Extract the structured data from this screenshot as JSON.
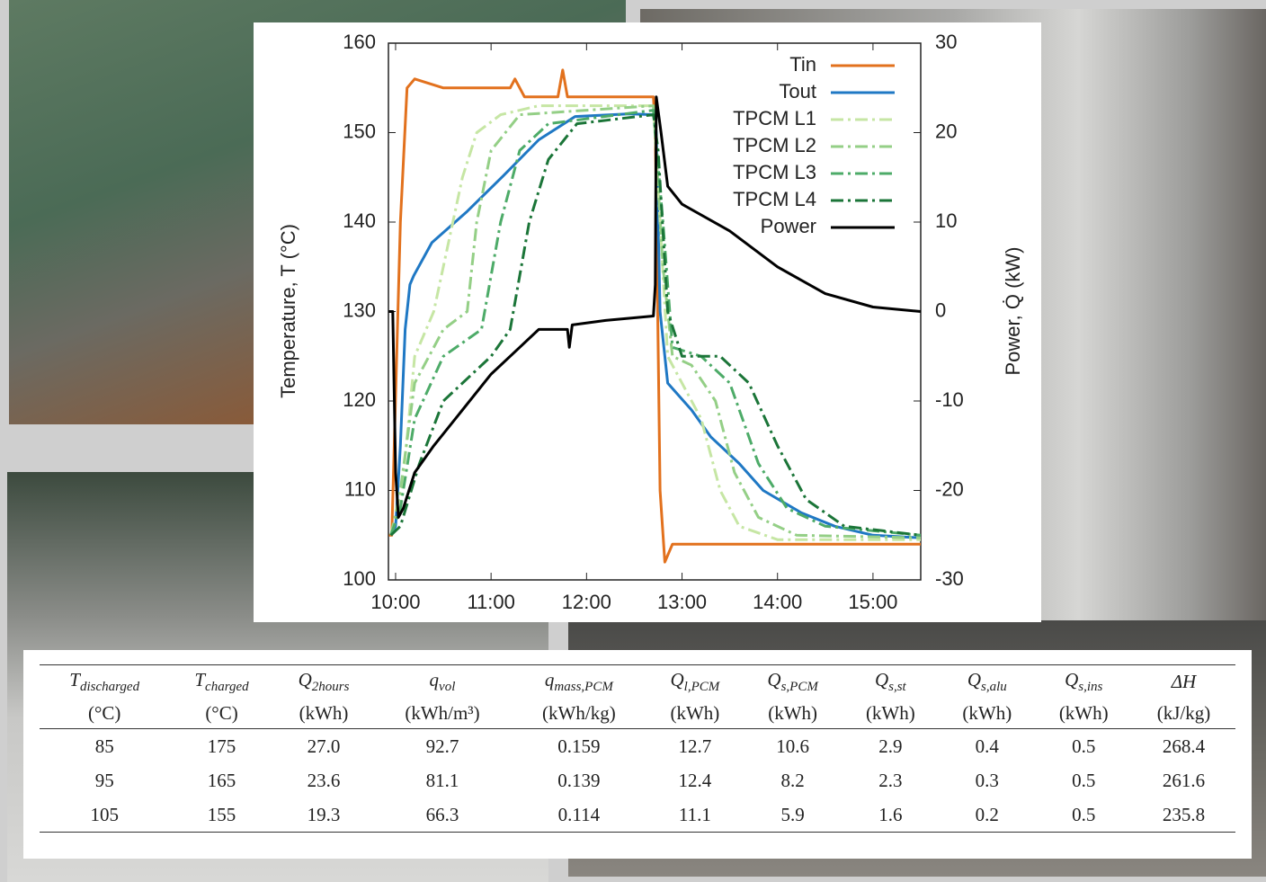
{
  "chart_data": {
    "type": "line",
    "ylabel": "Temperature, T (°C)",
    "y2label": "Power, Q̇ (kW)",
    "xlim": [
      9.925,
      15.5
    ],
    "xticks": [
      {
        "value": 10,
        "label": "10:00"
      },
      {
        "value": 11,
        "label": "11:00"
      },
      {
        "value": 12,
        "label": "12:00"
      },
      {
        "value": 13,
        "label": "13:00"
      },
      {
        "value": 14,
        "label": "14:00"
      },
      {
        "value": 15,
        "label": "15:00"
      }
    ],
    "ylim": [
      100,
      160
    ],
    "yticks": [
      100,
      110,
      120,
      130,
      140,
      150,
      160
    ],
    "y2lim": [
      -30,
      30
    ],
    "y2ticks": [
      -30,
      -20,
      -10,
      0,
      10,
      20,
      30
    ],
    "legend": "upper right",
    "series": [
      {
        "name": "Tin",
        "color": "#e2711d",
        "linestyle": "solid",
        "x": [
          9.93,
          9.96,
          10.05,
          10.12,
          10.2,
          10.5,
          11,
          11.2,
          11.25,
          11.35,
          11.7,
          11.75,
          11.8,
          11.9,
          12.2,
          12.7,
          12.72,
          12.77,
          12.82,
          12.9,
          13.5,
          14.5,
          15.5
        ],
        "values": [
          105,
          105,
          140,
          155,
          156,
          155,
          155,
          155,
          156,
          154,
          154,
          157,
          154,
          154,
          154,
          154,
          150,
          110,
          102,
          104,
          104,
          104,
          104
        ]
      },
      {
        "name": "Tout",
        "color": "#1f78c4",
        "linestyle": "solid",
        "x": [
          9.95,
          10.0,
          10.05,
          10.1,
          10.15,
          10.19,
          10.38,
          10.75,
          11.13,
          11.5,
          11.88,
          12.45,
          12.71,
          12.73,
          12.77,
          12.85,
          13.1,
          13.3,
          13.6,
          13.85,
          14.25,
          14.6,
          15.0,
          15.5
        ],
        "values": [
          105,
          106,
          115,
          128,
          133,
          134,
          137.7,
          141.2,
          145.2,
          149.2,
          151.8,
          152.1,
          152,
          150,
          130,
          122,
          119,
          116,
          113,
          110,
          107.5,
          106,
          105,
          104.7
        ]
      },
      {
        "name": "TPCM L1",
        "color": "#c6e6a4",
        "linestyle": "dashdot",
        "x": [
          9.95,
          10.05,
          10.2,
          10.4,
          10.7,
          10.85,
          11.1,
          11.5,
          12.7,
          12.85,
          13.0,
          13.2,
          13.4,
          13.6,
          14.0,
          15.5
        ],
        "values": [
          105,
          108,
          125,
          130,
          145,
          150,
          152,
          153,
          153,
          125,
          122,
          118,
          110,
          106,
          104.5,
          104.5
        ]
      },
      {
        "name": "TPCM L2",
        "color": "#94cf86",
        "linestyle": "dashdot",
        "x": [
          9.95,
          10.05,
          10.2,
          10.5,
          10.75,
          10.85,
          11.0,
          11.3,
          12.7,
          12.8,
          12.9,
          13.1,
          13.35,
          13.55,
          13.8,
          14.2,
          15.5
        ],
        "values": [
          105,
          110,
          122,
          128,
          130,
          140,
          148,
          152,
          153,
          135,
          125,
          124,
          120,
          112,
          107,
          105,
          104.7
        ]
      },
      {
        "name": "TPCM L3",
        "color": "#4dab68",
        "linestyle": "dashdot",
        "x": [
          9.95,
          10.05,
          10.2,
          10.5,
          10.9,
          11.1,
          11.3,
          11.6,
          12.7,
          12.8,
          12.9,
          13.2,
          13.5,
          13.8,
          14.1,
          14.5,
          15.5
        ],
        "values": [
          105,
          108,
          118,
          125,
          128,
          140,
          148,
          151,
          152.5,
          140,
          126,
          125,
          122,
          113,
          108,
          106,
          105
        ]
      },
      {
        "name": "TPCM L4",
        "color": "#1b7538",
        "linestyle": "dashdot",
        "x": [
          9.95,
          10.05,
          10.25,
          10.5,
          11.0,
          11.2,
          11.4,
          11.6,
          11.9,
          12.7,
          12.75,
          12.85,
          13.0,
          13.4,
          13.7,
          14.0,
          14.3,
          14.7,
          15.5
        ],
        "values": [
          105,
          106,
          113,
          120,
          125,
          128,
          140,
          147,
          151,
          152,
          148,
          130,
          125,
          125,
          122,
          115,
          109,
          106,
          105
        ]
      },
      {
        "name": "Power",
        "color": "#000000",
        "linestyle": "solid",
        "axis": "y2",
        "x": [
          9.93,
          9.97,
          10.0,
          10.03,
          10.08,
          10.2,
          10.4,
          10.7,
          11.0,
          11.3,
          11.5,
          11.8,
          11.82,
          11.85,
          12.2,
          12.7,
          12.72,
          12.73,
          12.78,
          12.85,
          13.0,
          13.5,
          14.0,
          14.5,
          15.0,
          15.5
        ],
        "values": [
          0,
          0,
          -18,
          -23,
          -22,
          -18,
          -15,
          -11,
          -7,
          -4,
          -2,
          -2,
          -4,
          -1.5,
          -1,
          -0.5,
          3,
          24,
          20,
          14,
          12,
          9,
          5,
          2,
          0.5,
          0
        ]
      }
    ]
  },
  "table": {
    "headers": [
      {
        "symbol": "T",
        "sub": "discharged",
        "unit": "(°C)"
      },
      {
        "symbol": "T",
        "sub": "charged",
        "unit": "(°C)"
      },
      {
        "symbol": "Q",
        "sub": "2hours",
        "unit": "(kWh)"
      },
      {
        "symbol": "q",
        "sub": "vol",
        "unit": "(kWh/m³)"
      },
      {
        "symbol": "q",
        "sub": "mass,PCM",
        "unit": "(kWh/kg)"
      },
      {
        "symbol": "Q",
        "sub": "l,PCM",
        "unit": "(kWh)"
      },
      {
        "symbol": "Q",
        "sub": "s,PCM",
        "unit": "(kWh)"
      },
      {
        "symbol": "Q",
        "sub": "s,st",
        "unit": "(kWh)"
      },
      {
        "symbol": "Q",
        "sub": "s,alu",
        "unit": "(kWh)"
      },
      {
        "symbol": "Q",
        "sub": "s,ins",
        "unit": "(kWh)"
      },
      {
        "symbol": "ΔH",
        "unit": "(kJ/kg)"
      }
    ],
    "rows": [
      [
        "85",
        "175",
        "27.0",
        "92.7",
        "0.159",
        "12.7",
        "10.6",
        "2.9",
        "0.4",
        "0.5",
        "268.4"
      ],
      [
        "95",
        "165",
        "23.6",
        "81.1",
        "0.139",
        "12.4",
        "8.2",
        "2.3",
        "0.3",
        "0.5",
        "261.6"
      ],
      [
        "105",
        "155",
        "19.3",
        "66.3",
        "0.114",
        "11.1",
        "5.9",
        "1.6",
        "0.2",
        "0.5",
        "235.8"
      ]
    ]
  }
}
